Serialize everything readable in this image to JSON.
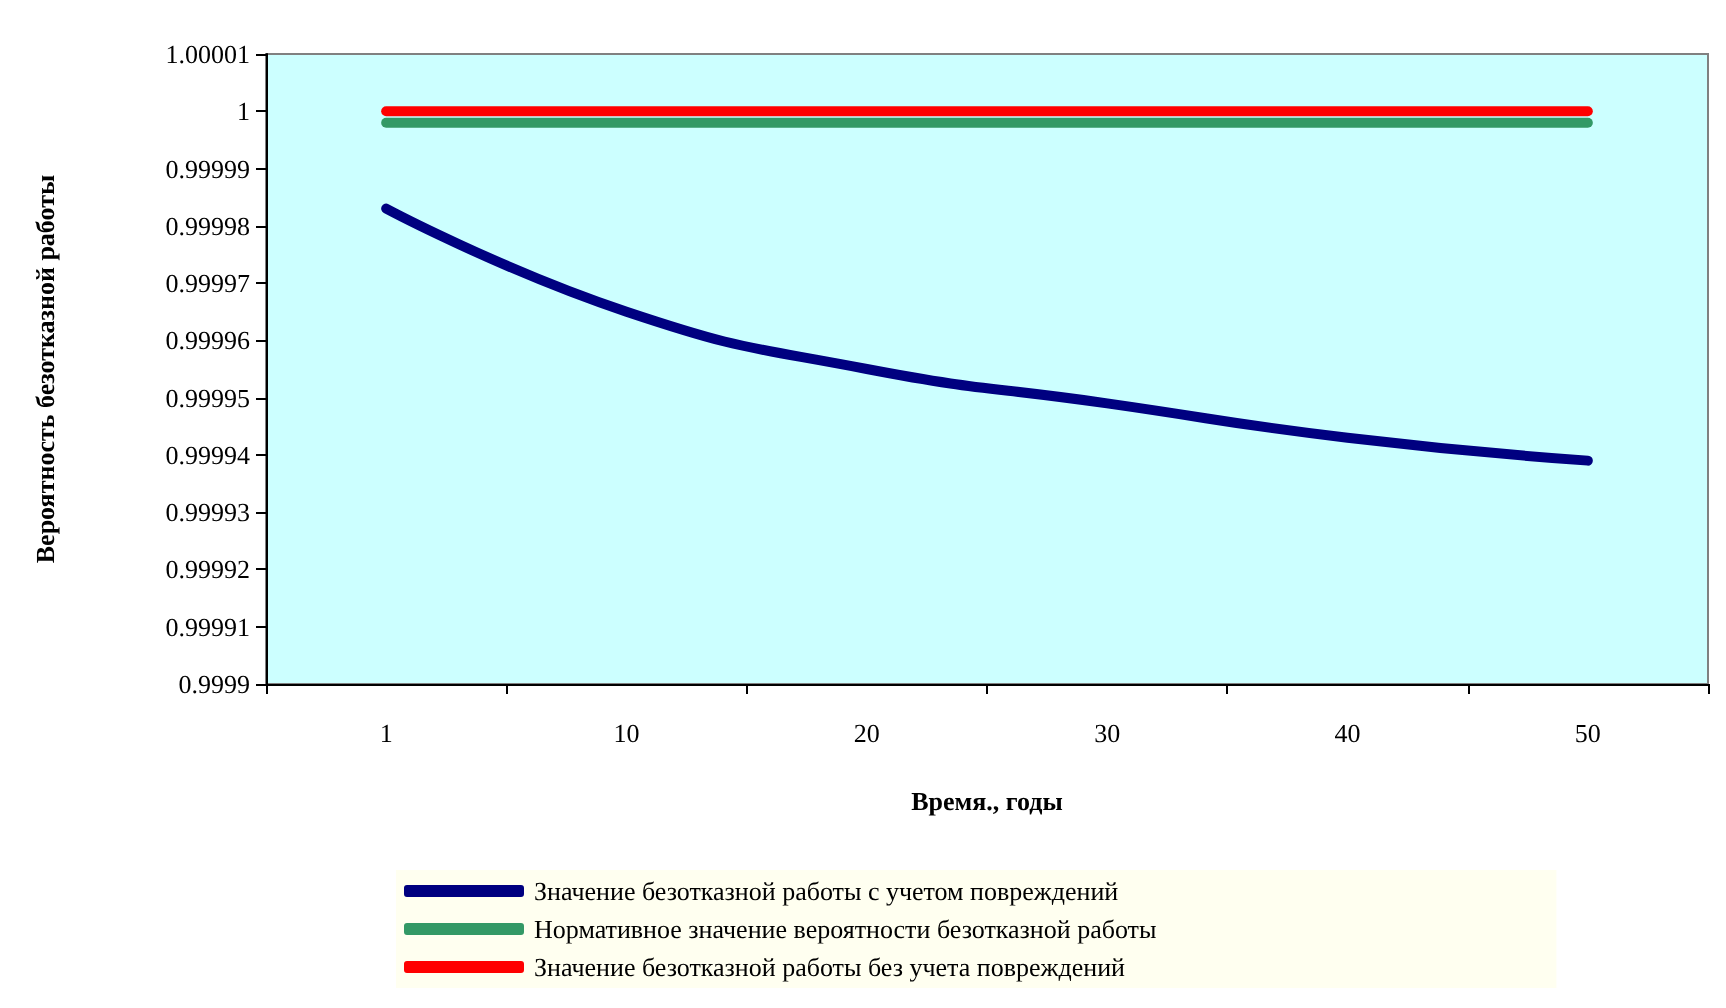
{
  "chart_data": {
    "type": "line",
    "xlabel": "Время., годы",
    "ylabel": "Вероятность безотказной работы",
    "categories": [
      "1",
      "10",
      "20",
      "30",
      "40",
      "50"
    ],
    "series": [
      {
        "name": "Значение безотказной работы с учетом повреждений",
        "color": "#000080",
        "values": [
          0.999983,
          0.999965,
          0.999955,
          0.999949,
          0.999943,
          0.999939
        ]
      },
      {
        "name": "Нормативное значение вероятности безотказной работы",
        "color": "#339966",
        "values": [
          0.999998,
          0.999998,
          0.999998,
          0.999998,
          0.999998,
          0.999998
        ]
      },
      {
        "name": "Значение безотказной работы без учета повреждений",
        "color": "#ff0000",
        "values": [
          1,
          1,
          1,
          1,
          1,
          1
        ]
      }
    ],
    "ylim": [
      0.9999,
      1.00001
    ],
    "yticks": [
      0.9999,
      0.99991,
      0.99992,
      0.99993,
      0.99994,
      0.99995,
      0.99996,
      0.99997,
      0.99998,
      0.99999,
      1,
      1.00001
    ],
    "grid": false,
    "legend": "bottom",
    "marker": "none",
    "line_style": "solid"
  }
}
